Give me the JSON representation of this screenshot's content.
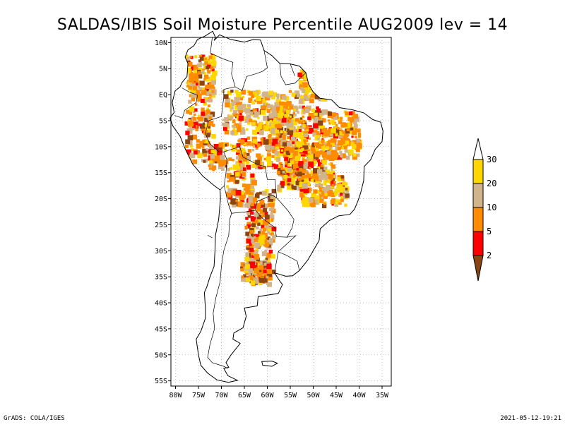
{
  "title": "SALDAS/IBIS Soil Moisture Percentile AUG2009 lev = 14",
  "footer": {
    "left": "GrADS: COLA/IGES",
    "right": "2021-05-12-19:21"
  },
  "chart_data": {
    "type": "heatmap",
    "title": "SALDAS/IBIS Soil Moisture Percentile AUG2009 lev = 14",
    "x_ticks": [
      "80W",
      "75W",
      "70W",
      "65W",
      "60W",
      "55W",
      "50W",
      "45W",
      "40W",
      "35W"
    ],
    "y_ticks": [
      "10N",
      "5N",
      "EQ",
      "5S",
      "10S",
      "15S",
      "20S",
      "25S",
      "30S",
      "35S",
      "40S",
      "45S",
      "50S",
      "55S"
    ],
    "lon_range": [
      -81,
      -33
    ],
    "lat_range": [
      -56,
      11
    ],
    "grid": true,
    "legend_placement": "right",
    "colorbar": {
      "levels": [
        "2",
        "5",
        "10",
        "20",
        "30"
      ],
      "colors": [
        "#8B4513",
        "#FF0000",
        "#FF8C00",
        "#D2B48C",
        "#FFD700"
      ]
    }
  }
}
